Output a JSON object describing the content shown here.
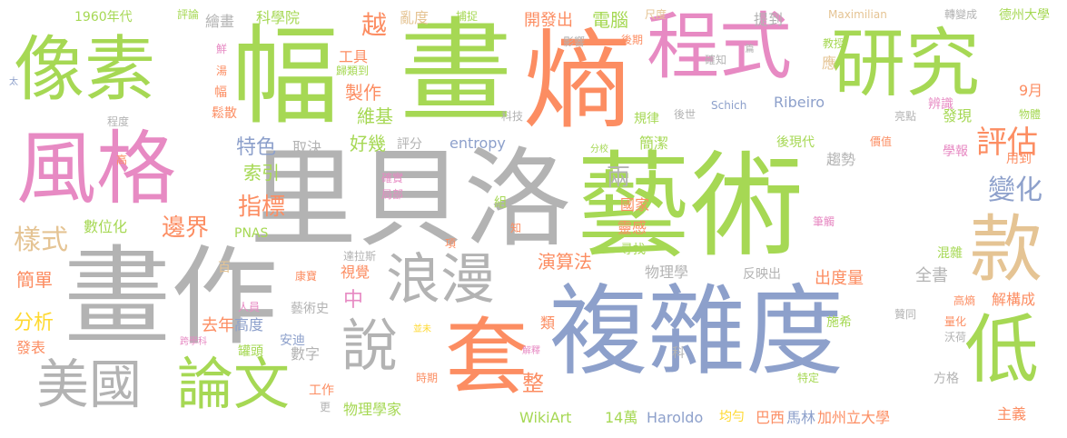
{
  "colors": {
    "gray": "#b3b3b3",
    "green": "#a6d854",
    "orange": "#fc8d62",
    "blue": "#8da0cb",
    "pink": "#e78ac3",
    "tan": "#e5c494",
    "yellow": "#ffd92f",
    "teal": "#66c2a5"
  },
  "words": [
    {
      "text": "藝術",
      "color": "green"
    },
    {
      "text": "里貝洛",
      "color": "gray"
    },
    {
      "text": "畫作",
      "color": "gray"
    },
    {
      "text": "複雜度",
      "color": "blue"
    },
    {
      "text": "畫",
      "color": "green"
    },
    {
      "text": "熵",
      "color": "orange"
    },
    {
      "text": "幅",
      "color": "green"
    },
    {
      "text": "風格",
      "color": "pink"
    },
    {
      "text": "程式",
      "color": "pink"
    },
    {
      "text": "研究",
      "color": "green"
    },
    {
      "text": "像素",
      "color": "green"
    },
    {
      "text": "套",
      "color": "orange"
    },
    {
      "text": "款",
      "color": "tan"
    },
    {
      "text": "低",
      "color": "green"
    },
    {
      "text": "浪漫",
      "color": "gray"
    },
    {
      "text": "美國",
      "color": "gray"
    },
    {
      "text": "論文",
      "color": "green"
    },
    {
      "text": "說",
      "color": "gray"
    },
    {
      "text": "評估",
      "color": "orange"
    },
    {
      "text": "變化",
      "color": "blue"
    },
    {
      "text": "樣式",
      "color": "tan"
    },
    {
      "text": "指標",
      "color": "orange"
    },
    {
      "text": "邊界",
      "color": "orange"
    },
    {
      "text": "特色",
      "color": "blue"
    },
    {
      "text": "索引",
      "color": "green"
    },
    {
      "text": "取決",
      "color": "gray"
    },
    {
      "text": "好幾",
      "color": "green"
    },
    {
      "text": "維基",
      "color": "green"
    },
    {
      "text": "製作",
      "color": "orange"
    },
    {
      "text": "工具",
      "color": "orange"
    },
    {
      "text": "越",
      "color": "orange"
    },
    {
      "text": "繪畫",
      "color": "gray"
    },
    {
      "text": "科學院",
      "color": "green"
    },
    {
      "text": "1960年代",
      "color": "green"
    },
    {
      "text": "評論",
      "color": "green"
    },
    {
      "text": "亂度",
      "color": "tan"
    },
    {
      "text": "捕捉",
      "color": "green"
    },
    {
      "text": "開發出",
      "color": "orange"
    },
    {
      "text": "電腦",
      "color": "green"
    },
    {
      "text": "尺度",
      "color": "tan"
    },
    {
      "text": "Maximilian",
      "color": "tan"
    },
    {
      "text": "轉變成",
      "color": "gray"
    },
    {
      "text": "德州大學",
      "color": "green"
    },
    {
      "text": "提到",
      "color": "gray"
    },
    {
      "text": "影響",
      "color": "gray"
    },
    {
      "text": "後期",
      "color": "orange"
    },
    {
      "text": "篇",
      "color": "gray"
    },
    {
      "text": "確知",
      "color": "gray"
    },
    {
      "text": "教授",
      "color": "green"
    },
    {
      "text": "應",
      "color": "tan"
    },
    {
      "text": "9月",
      "color": "orange"
    },
    {
      "text": "辨識",
      "color": "pink"
    },
    {
      "text": "規律",
      "color": "green"
    },
    {
      "text": "後世",
      "color": "gray"
    },
    {
      "text": "Schich",
      "color": "blue"
    },
    {
      "text": "Ribeiro",
      "color": "blue"
    },
    {
      "text": "發現",
      "color": "green"
    },
    {
      "text": "物體",
      "color": "green"
    },
    {
      "text": "亮點",
      "color": "gray"
    },
    {
      "text": "科技",
      "color": "gray"
    },
    {
      "text": "程度",
      "color": "gray"
    },
    {
      "text": "評分",
      "color": "gray"
    },
    {
      "text": "entropy",
      "color": "blue"
    },
    {
      "text": "分校",
      "color": "green"
    },
    {
      "text": "簡潔",
      "color": "green"
    },
    {
      "text": "後現代",
      "color": "green"
    },
    {
      "text": "價值",
      "color": "orange"
    },
    {
      "text": "學報",
      "color": "pink"
    },
    {
      "text": "用到",
      "color": "orange"
    },
    {
      "text": "趨勢",
      "color": "gray"
    },
    {
      "text": "確實",
      "color": "pink"
    },
    {
      "text": "局部",
      "color": "pink"
    },
    {
      "text": "國家",
      "color": "orange"
    },
    {
      "text": "靈感",
      "color": "orange"
    },
    {
      "text": "尋找",
      "color": "green"
    },
    {
      "text": "兩",
      "color": "gray"
    },
    {
      "text": "組",
      "color": "green"
    },
    {
      "text": "數位化",
      "color": "green"
    },
    {
      "text": "PNAS",
      "color": "green"
    },
    {
      "text": "達拉斯",
      "color": "gray"
    },
    {
      "text": "項",
      "color": "orange"
    },
    {
      "text": "知",
      "color": "orange"
    },
    {
      "text": "筆觸",
      "color": "pink"
    },
    {
      "text": "混雜",
      "color": "green"
    },
    {
      "text": "全書",
      "color": "gray"
    },
    {
      "text": "出度量",
      "color": "orange"
    },
    {
      "text": "解構成",
      "color": "orange"
    },
    {
      "text": "高熵",
      "color": "orange"
    },
    {
      "text": "反映出",
      "color": "gray"
    },
    {
      "text": "物理學",
      "color": "gray"
    },
    {
      "text": "演算法",
      "color": "orange"
    },
    {
      "text": "中",
      "color": "pink"
    },
    {
      "text": "視覺",
      "color": "orange"
    },
    {
      "text": "康寶",
      "color": "orange"
    },
    {
      "text": "藝術史",
      "color": "gray"
    },
    {
      "text": "人員",
      "color": "pink"
    },
    {
      "text": "百",
      "color": "tan"
    },
    {
      "text": "簡單",
      "color": "orange"
    },
    {
      "text": "分析",
      "color": "yellow"
    },
    {
      "text": "去年",
      "color": "orange"
    },
    {
      "text": "高度",
      "color": "blue"
    },
    {
      "text": "發表",
      "color": "orange"
    },
    {
      "text": "跨學科",
      "color": "pink"
    },
    {
      "text": "罐頭",
      "color": "green"
    },
    {
      "text": "安迪",
      "color": "blue"
    },
    {
      "text": "類",
      "color": "orange"
    },
    {
      "text": "並未",
      "color": "yellow"
    },
    {
      "text": "贊同",
      "color": "gray"
    },
    {
      "text": "量化",
      "color": "orange"
    },
    {
      "text": "沃荷",
      "color": "gray"
    },
    {
      "text": "施希",
      "color": "green"
    },
    {
      "text": "科",
      "color": "gray"
    },
    {
      "text": "解釋",
      "color": "pink"
    },
    {
      "text": "數字",
      "color": "gray"
    },
    {
      "text": "工作",
      "color": "orange"
    },
    {
      "text": "更",
      "color": "gray"
    },
    {
      "text": "時期",
      "color": "orange"
    },
    {
      "text": "整",
      "color": "orange"
    },
    {
      "text": "特定",
      "color": "green"
    },
    {
      "text": "方格",
      "color": "gray"
    },
    {
      "text": "物理學家",
      "color": "green"
    },
    {
      "text": "WikiArt",
      "color": "green"
    },
    {
      "text": "14萬",
      "color": "green"
    },
    {
      "text": "Haroldo",
      "color": "blue"
    },
    {
      "text": "均勻",
      "color": "yellow"
    },
    {
      "text": "巴西",
      "color": "orange"
    },
    {
      "text": "馬林",
      "color": "blue"
    },
    {
      "text": "加州立大學",
      "color": "orange"
    },
    {
      "text": "主義",
      "color": "orange"
    },
    {
      "text": "太",
      "color": "blue"
    },
    {
      "text": "鮮",
      "color": "pink"
    },
    {
      "text": "湯",
      "color": "orange"
    },
    {
      "text": "幅",
      "color": "orange"
    },
    {
      "text": "鬆散",
      "color": "orange"
    },
    {
      "text": "高",
      "color": "orange"
    },
    {
      "text": "歸類到",
      "color": "green"
    }
  ]
}
